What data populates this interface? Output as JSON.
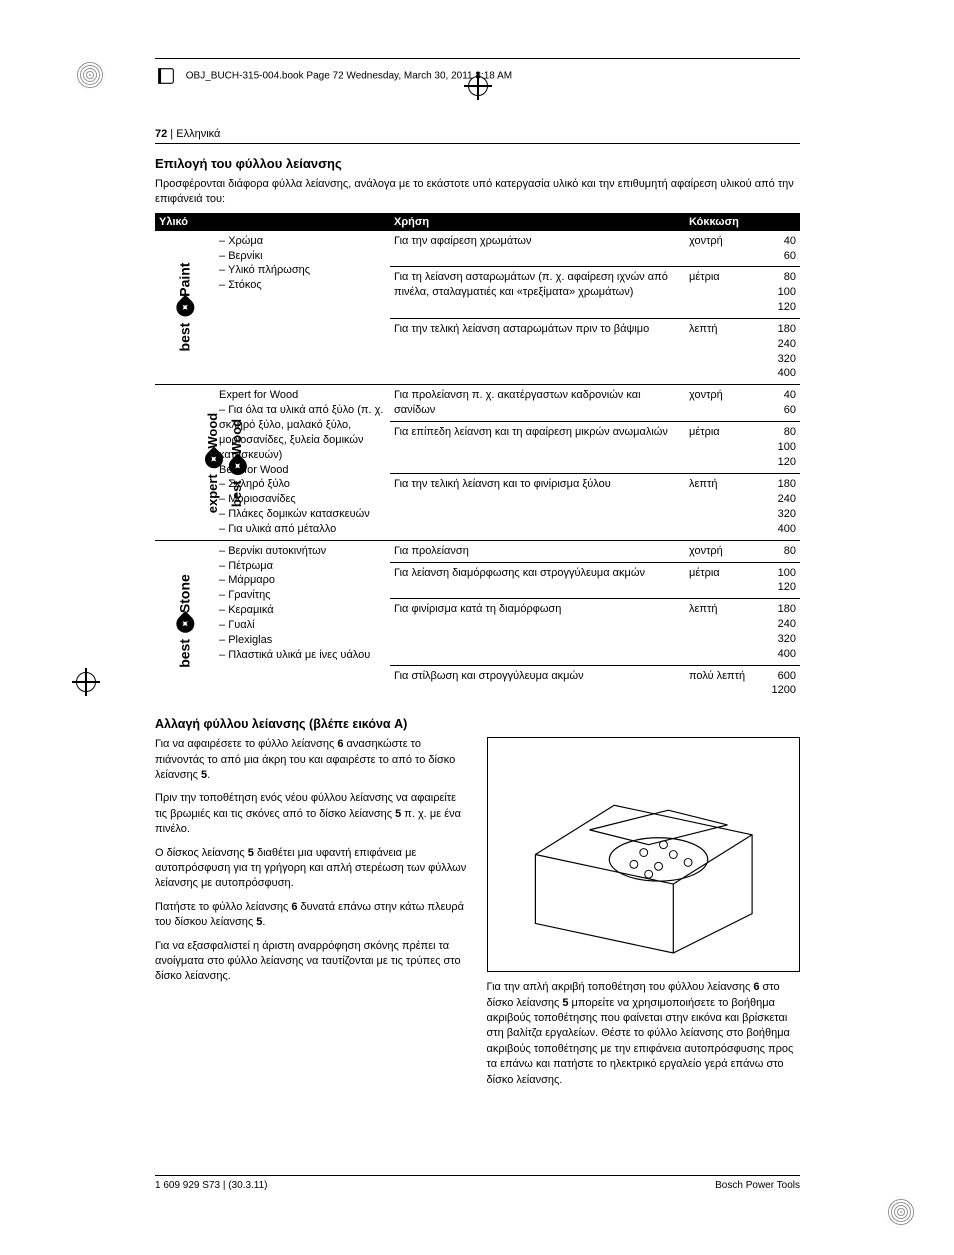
{
  "running_head": "OBJ_BUCH-315-004.book  Page 72  Wednesday, March 30, 2011  8:18 AM",
  "page_number": "72",
  "language": "Ελληνικά",
  "section_title": "Επιλογή του φύλλου λείανσης",
  "intro": "Προσφέρονται διάφορα φύλλα λείανσης, ανάλογα με το εκάστοτε υπό κατεργασία υλικό και την επιθυμητή αφαίρεση υλικού από την επιφάνειά του:",
  "table": {
    "headers": {
      "material": "Υλικό",
      "use": "Χρήση",
      "grain": "Κόκκωση"
    },
    "groups": [
      {
        "icon_text": "best for Paint",
        "material_lines": [
          "Χρώμα",
          "Βερνίκι",
          "Υλικό πλήρωσης",
          "Στόκος"
        ],
        "rows": [
          {
            "use": "Για την αφαίρεση χρωμάτων",
            "grain": "χοντρή",
            "grits": "40\n60"
          },
          {
            "use": "Για τη λείανση ασταρωμάτων (π. χ. αφαίρεση ιχνών από πινέλα, σταλαγματιές και «τρεξίματα» χρωμάτων)",
            "grain": "μέτρια",
            "grits": "80\n100\n120"
          },
          {
            "use": "Για την τελική λείανση ασταρωμάτων πριν το βάψιμο",
            "grain": "λεπτή",
            "grits": "180\n240\n320\n400"
          }
        ]
      },
      {
        "icon_text_outer": "expert for Wood",
        "icon_text_inner": "best for Wood",
        "material_blocks": [
          {
            "title": "Expert for Wood",
            "lines": [
              "Για όλα τα υλικά από ξύλο (π. χ. σκληρό ξύλο, μαλακό ξύλο, μοριοσανίδες, ξυλεία δομικών κατασκευών)"
            ]
          },
          {
            "title": "Best for Wood",
            "lines": [
              "Σκληρό ξύλο",
              "Μοριοσανίδες",
              "Πλάκες δομικών κατασκευών",
              "Για υλικά από μέταλλο"
            ]
          }
        ],
        "rows": [
          {
            "use": "Για προλείανση π. χ. ακατέργαστων καδρονιών και σανίδων",
            "grain": "χοντρή",
            "grits": "40\n60"
          },
          {
            "use": "Για επίπεδη λείανση και τη αφαίρεση μικρών ανωμαλιών",
            "grain": "μέτρια",
            "grits": "80\n100\n120"
          },
          {
            "use": "Για την τελική λείανση και το φινίρισμα ξύλου",
            "grain": "λεπτή",
            "grits": "180\n240\n320\n400"
          }
        ]
      },
      {
        "icon_text": "best for Stone",
        "material_lines": [
          "Βερνίκι αυτοκινήτων",
          "Πέτρωμα",
          "Μάρμαρο",
          "Γρανίτης",
          "Κεραμικά",
          "Γυαλί",
          "Plexiglas",
          "Πλαστικά υλικά με ίνες υάλου"
        ],
        "rows": [
          {
            "use": "Για προλείανση",
            "grain": "χοντρή",
            "grits": "80"
          },
          {
            "use": "Για λείανση διαμόρφωσης και στρογγύλευμα ακμών",
            "grain": "μέτρια",
            "grits": "100\n120"
          },
          {
            "use": "Για φινίρισμα κατά τη διαμόρφωση",
            "grain": "λεπτή",
            "grits": "180\n240\n320\n400"
          },
          {
            "use": "Για στίλβωση και στρογγύλευμα ακμών",
            "grain": "πολύ λεπτή",
            "grits": "600\n1200"
          }
        ]
      }
    ]
  },
  "subheading": "Αλλαγή φύλλου λείανσης (βλέπε εικόνα A)",
  "left_paras": [
    "Για να αφαιρέσετε το φύλλο λείανσης 6 ανασηκώστε το πιάνοντάς το από μια άκρη του και αφαιρέστε το από το δίσκο λείανσης 5.",
    "Πριν την τοποθέτηση ενός νέου φύλλου λείανσης να αφαιρείτε τις βρωμιές και τις σκόνες από το δίσκο λείανσης 5 π. χ. με ένα πινέλο.",
    "Ο δίσκος λείανσης 5 διαθέτει μια υφαντή επιφάνεια με αυτοπρόσφυση για τη γρήγορη και απλή στερέωση των φύλλων λείανσης με αυτοπρόσφυση.",
    "Πατήστε το φύλλο λείανσης 6 δυνατά επάνω στην κάτω πλευρά του δίσκου λείανσης 5.",
    "Για να εξασφαλιστεί η άριστη αναρρόφηση σκόνης πρέπει τα ανοίγματα στο φύλλο λείανσης να ταυτίζονται με τις τρύπες στο δίσκο λείανσης."
  ],
  "right_para": "Για την απλή ακριβή τοποθέτηση του φύλλου λείανσης 6 στο δίσκο λείανσης 5 μπορείτε να χρησιμοποιήσετε το βοήθημα ακριβούς τοποθέτησης που φαίνεται στην εικόνα και βρίσκεται στη βαλίτζα εργαλείων. Θέστε το φύλλο λείανσης στο βοήθημα ακριβούς τοποθέτησης με την επιφάνεια αυτοπρόσφυσης προς τα επάνω και πατήστε το ηλεκτρικό εργαλείο γερά επάνω στο δίσκο λείανσης.",
  "footer_left": "1 609 929 S73 | (30.3.11)",
  "footer_right": "Bosch Power Tools",
  "style": {
    "page_bg": "#ffffff",
    "text_color": "#000000",
    "header_bg": "#000000",
    "header_fg": "#ffffff",
    "body_fontsize_pt": 11,
    "title_fontsize_pt": 13,
    "subheading_fontsize_pt": 12.5
  }
}
